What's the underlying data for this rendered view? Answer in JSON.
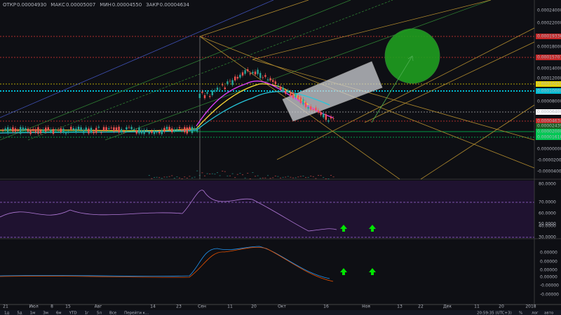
{
  "header": {
    "items": [
      {
        "label": "ОТКР",
        "value": "0.00004930"
      },
      {
        "label": "МАКС",
        "value": "0.00005007"
      },
      {
        "label": "МИН",
        "value": "0.00004550"
      },
      {
        "label": "ЗАКР",
        "value": "0.00004634"
      }
    ]
  },
  "price_axis": [
    {
      "text": "0.00024000"
    },
    {
      "text": "0.00022000"
    },
    {
      "text": "0.00019336",
      "highlight": "#c62828"
    },
    {
      "text": "0.00018000"
    },
    {
      "text": "0.00015707",
      "highlight": "#c62828"
    },
    {
      "text": "0.00014000"
    },
    {
      "text": "0.00012000"
    },
    {
      "text": "0.00010452",
      "highlight": "#e6d400"
    },
    {
      "text": "0.00010000",
      "highlight": "#00bcd4"
    },
    {
      "text": "0.00008000"
    },
    {
      "text": "0.00006400",
      "highlight": "#ffffff"
    },
    {
      "text": "0.00004634",
      "highlight": "#c62828"
    },
    {
      "text": "0.00002439",
      "highlight": "#1b5e20"
    },
    {
      "text": "0.00002000",
      "highlight": "#00c853"
    },
    {
      "text": "0.00001610",
      "highlight": "#00c853"
    },
    {
      "text": "0.00000000"
    },
    {
      "text": "-0.00002000"
    },
    {
      "text": "-0.00004000"
    }
  ],
  "rsi_axis": [
    "80.0000",
    "70.0000",
    "60.0000",
    "50.0000",
    "40.0000",
    "30.0000"
  ],
  "macd_axis": [
    "0.00000",
    "0.00000",
    "0.00000",
    "0.00000",
    "-0.00000",
    "-0.00000"
  ],
  "date_axis": [
    "21",
    "Июл",
    "8",
    "15",
    "Авг",
    "14",
    "23",
    "Сен",
    "11",
    "20",
    "Окт",
    "16",
    "Ноя",
    "13",
    "22",
    "Дек",
    "11",
    "20",
    "2018"
  ],
  "toolbar": {
    "ranges": [
      "1д",
      "5д",
      "1м",
      "3м",
      "6м",
      "YTD",
      "1г",
      "5л",
      "Все",
      "Перейти к..."
    ],
    "right": [
      "20:59:35 (UTC+3)",
      "%",
      "лог",
      "авто"
    ]
  }
}
